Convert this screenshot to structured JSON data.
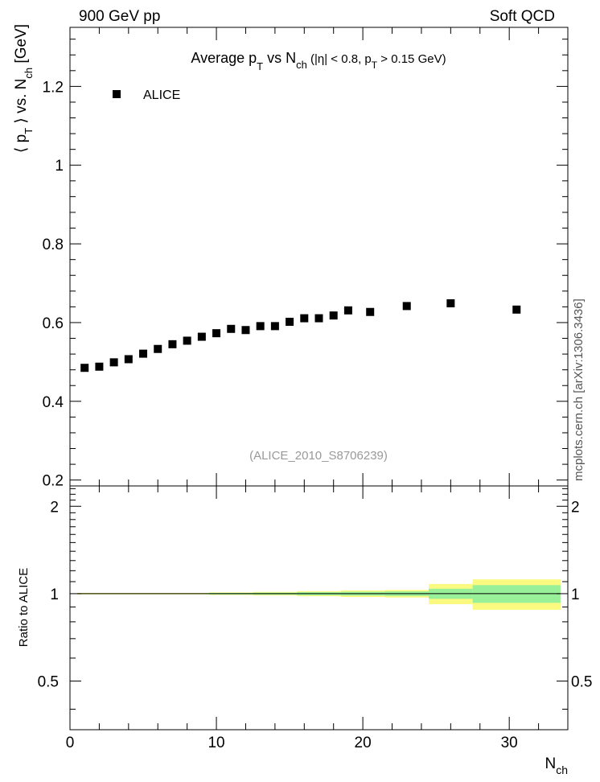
{
  "header": {
    "left": "900 GeV pp",
    "right": "Soft QCD"
  },
  "side_credit": "mcplots.cern.ch [arXiv:1306.3436]",
  "chart_data": [
    {
      "type": "scatter",
      "panel": "main",
      "title_parts": {
        "base": "Average p",
        "sub1": "T",
        "mid": " vs N",
        "sub2": "ch",
        "cut_a": " (|η| < 0.8, p",
        "sub3": "T",
        "cut_b": " > 0.15 GeV)"
      },
      "ylabel_parts": {
        "open": "⟨ p",
        "sub1": "T",
        "mid": " ⟩ vs. N",
        "sub2": "ch",
        "unit": " [GeV]"
      },
      "ylim": [
        0.185,
        1.35
      ],
      "yticks": [
        0.2,
        0.4,
        0.6,
        0.8,
        1.0,
        1.2
      ],
      "ytick_labels": [
        "0.2",
        "0.4",
        "0.6",
        "0.8",
        "1",
        "1.2"
      ],
      "legend_position": "top-left",
      "watermark": "(ALICE_2010_S8706239)",
      "series": [
        {
          "name": "ALICE",
          "color": "#000000",
          "marker": "square",
          "x": [
            1,
            2,
            3,
            4,
            5,
            6,
            7,
            8,
            9,
            10,
            11,
            12,
            13,
            14,
            15,
            16,
            17,
            18,
            19,
            20.5,
            23,
            26,
            30.5
          ],
          "y": [
            0.485,
            0.488,
            0.499,
            0.507,
            0.521,
            0.533,
            0.545,
            0.554,
            0.564,
            0.573,
            0.584,
            0.581,
            0.591,
            0.591,
            0.602,
            0.611,
            0.611,
            0.618,
            0.631,
            0.627,
            0.642,
            0.649,
            0.633
          ]
        }
      ]
    },
    {
      "type": "area",
      "panel": "ratio",
      "ylabel": "Ratio to ALICE",
      "ylim": [
        0.34,
        2.35
      ],
      "yticks": [
        0.5,
        1,
        2
      ],
      "ytick_labels": [
        "0.5",
        "1",
        "2"
      ],
      "xlim": [
        0,
        34
      ],
      "xticks": [
        0,
        10,
        20,
        30
      ],
      "xtick_labels": [
        "0",
        "10",
        "20",
        "30"
      ],
      "xlabel_parts": {
        "base": "N",
        "sub": "ch"
      },
      "reference": 1,
      "bands": [
        {
          "name": "total uncertainty",
          "color": "#fafa80"
        },
        {
          "name": "stat uncertainty",
          "color": "#98f098"
        }
      ],
      "bins": [
        {
          "lo": 0.5,
          "hi": 9.5,
          "tot": 0.006,
          "stat": 0.003
        },
        {
          "lo": 9.5,
          "hi": 12.5,
          "tot": 0.01,
          "stat": 0.006
        },
        {
          "lo": 12.5,
          "hi": 15.5,
          "tot": 0.014,
          "stat": 0.008
        },
        {
          "lo": 15.5,
          "hi": 18.5,
          "tot": 0.02,
          "stat": 0.012
        },
        {
          "lo": 18.5,
          "hi": 21.5,
          "tot": 0.026,
          "stat": 0.015
        },
        {
          "lo": 21.5,
          "hi": 24.5,
          "tot": 0.03,
          "stat": 0.018
        },
        {
          "lo": 24.5,
          "hi": 27.5,
          "tot": 0.08,
          "stat": 0.04
        },
        {
          "lo": 27.5,
          "hi": 33.5,
          "tot": 0.12,
          "stat": 0.07
        }
      ]
    }
  ]
}
